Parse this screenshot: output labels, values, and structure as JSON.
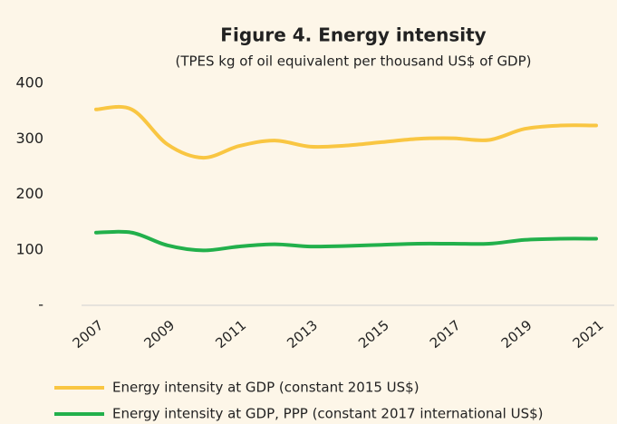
{
  "chart_data": {
    "type": "line",
    "title": "Figure 4. Energy intensity",
    "subtitle": "(TPES kg of oil equivalent per thousand US$ of GDP)",
    "x": [
      2007,
      2008,
      2009,
      2010,
      2011,
      2012,
      2013,
      2014,
      2015,
      2016,
      2017,
      2018,
      2019,
      2020,
      2021
    ],
    "xlim": [
      2007,
      2021
    ],
    "xticks": [
      2007,
      2009,
      2011,
      2013,
      2015,
      2017,
      2019,
      2021
    ],
    "ylim": [
      0,
      400
    ],
    "yticks": [
      {
        "value": 0,
        "label": "-"
      },
      100,
      200,
      300,
      400
    ],
    "grid": false,
    "legend": "bottom",
    "series": [
      {
        "name": "Energy intensity at GDP (constant 2015 US$)",
        "color": "#f9c642",
        "values": [
          353,
          353,
          290,
          266,
          287,
          297,
          286,
          288,
          294,
          300,
          301,
          298,
          318,
          324,
          324
        ]
      },
      {
        "name": "Energy intensity at GDP, PPP (constant 2017 international US$)",
        "color": "#22b04b",
        "values": [
          131,
          131,
          108,
          99,
          106,
          110,
          106,
          107,
          109,
          111,
          111,
          111,
          118,
          120,
          120
        ]
      }
    ]
  }
}
